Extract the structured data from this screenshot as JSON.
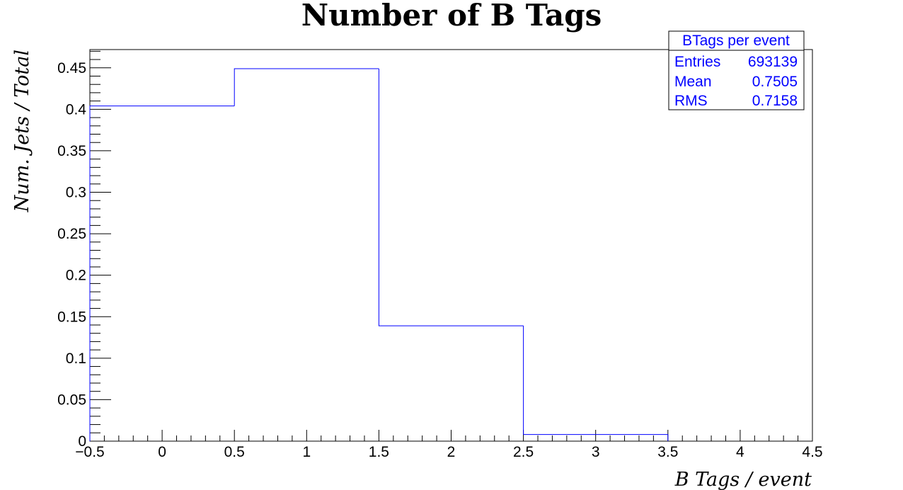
{
  "chart_data": {
    "type": "bar",
    "title": "Number of B Tags",
    "xlabel": "B Tags / event",
    "ylabel": "Num. Jets / Total",
    "xlim": [
      -0.5,
      4.5
    ],
    "ylim": [
      0,
      0.472
    ],
    "x_ticks": [
      -0.5,
      0,
      0.5,
      1,
      1.5,
      2,
      2.5,
      3,
      3.5,
      4,
      4.5
    ],
    "x_tick_labels": [
      "−0.5",
      "0",
      "0.5",
      "1",
      "1.5",
      "2",
      "2.5",
      "3",
      "3.5",
      "4",
      "4.5"
    ],
    "y_ticks": [
      0,
      0.05,
      0.1,
      0.15,
      0.2,
      0.25,
      0.3,
      0.35,
      0.4,
      0.45
    ],
    "y_tick_labels": [
      "0",
      "0.05",
      "0.1",
      "0.15",
      "0.2",
      "0.25",
      "0.3",
      "0.35",
      "0.4",
      "0.45"
    ],
    "bins": [
      {
        "low": -0.5,
        "high": 0.5,
        "value": 0.404
      },
      {
        "low": 0.5,
        "high": 1.5,
        "value": 0.449
      },
      {
        "low": 1.5,
        "high": 2.5,
        "value": 0.139
      },
      {
        "low": 2.5,
        "high": 3.5,
        "value": 0.008
      }
    ],
    "line_color": "#0000ff",
    "grid": false,
    "stats_box": {
      "name": "BTags per event",
      "rows": [
        {
          "label": "Entries",
          "value": "693139"
        },
        {
          "label": "Mean",
          "value": "0.7505"
        },
        {
          "label": "RMS",
          "value": "0.7158"
        }
      ],
      "placement": "top-right"
    }
  }
}
